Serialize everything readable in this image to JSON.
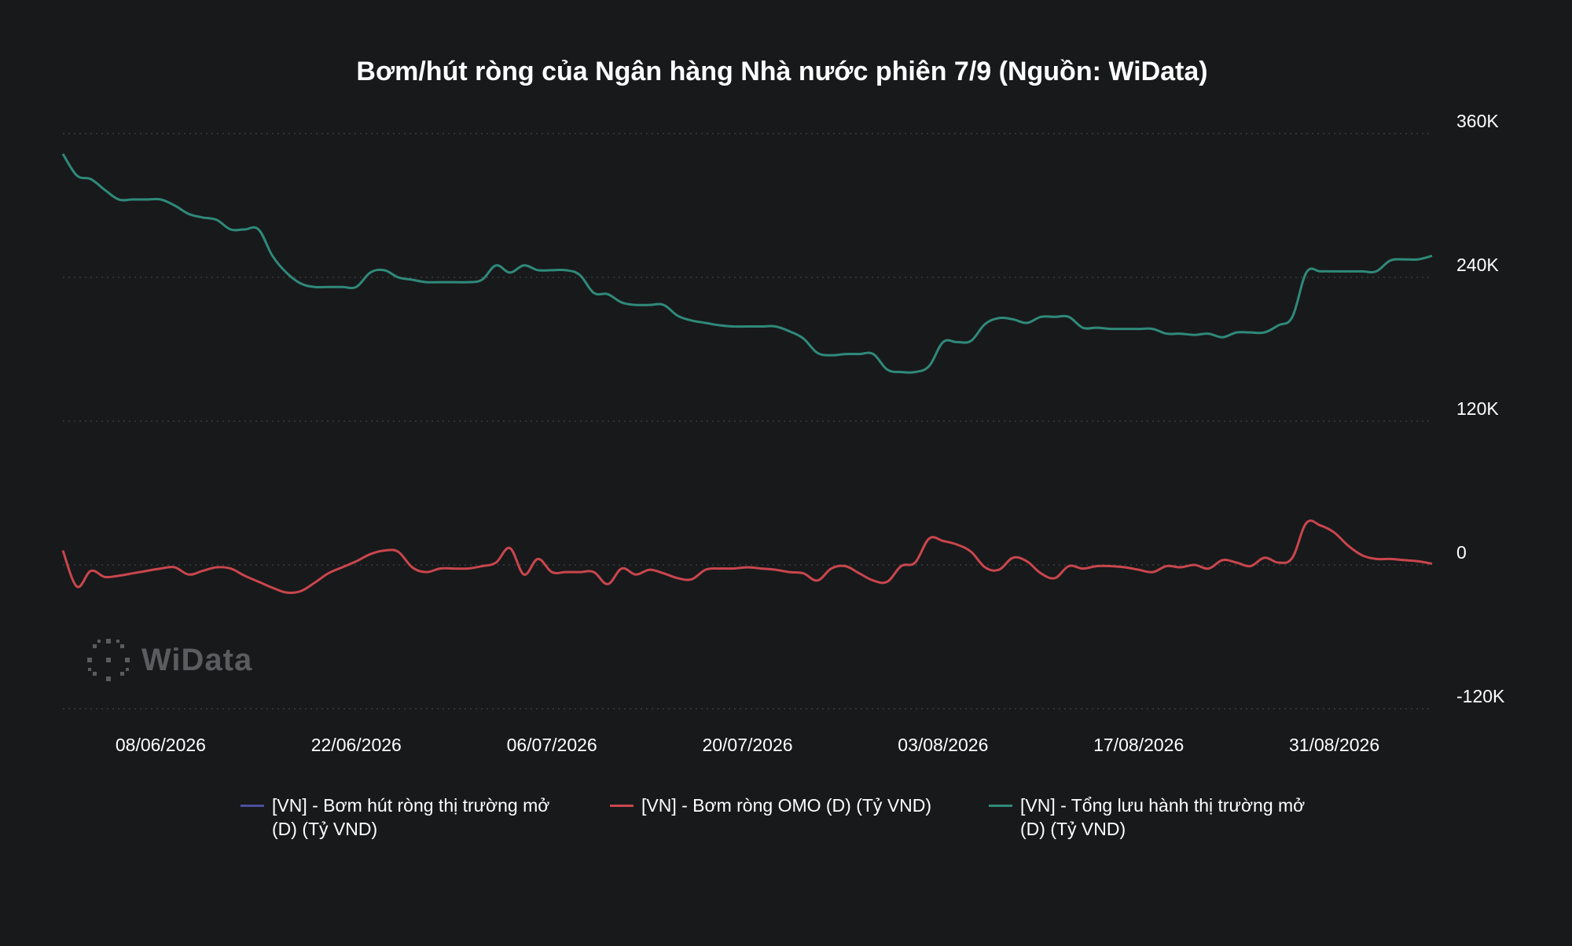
{
  "chart_data": {
    "type": "line",
    "title": "Bơm/hút ròng của Ngân hàng Nhà nước phiên 7/9 (Nguồn: WiData)",
    "xlabel": "",
    "ylabel": "",
    "x_ticks": [
      "08/06/2026",
      "22/06/2026",
      "06/07/2026",
      "20/07/2026",
      "03/08/2026",
      "17/08/2026",
      "31/08/2026"
    ],
    "y_ticks": [
      "360K",
      "240K",
      "120K",
      "0",
      "-120K"
    ],
    "ylim": [
      -120000,
      360000
    ],
    "xlim": [
      "2026-06-01",
      "2026-09-07"
    ],
    "grid": "horizontal dotted",
    "legend_position": "bottom",
    "series": [
      {
        "name": "[VN] - Bơm hút ròng thị trường mở (D) (Tỷ VND)",
        "color": "#4b4f9e",
        "points": []
      },
      {
        "name": "[VN] - Bơm ròng OMO (D) (Tỷ VND)",
        "color": "#c9464d",
        "points": [
          [
            "2026-06-01",
            12000
          ],
          [
            "2026-06-02",
            -18000
          ],
          [
            "2026-06-03",
            -5000
          ],
          [
            "2026-06-04",
            -10000
          ],
          [
            "2026-06-05",
            -9000
          ],
          [
            "2026-06-06",
            -7000
          ],
          [
            "2026-06-07",
            -5000
          ],
          [
            "2026-06-08",
            -3000
          ],
          [
            "2026-06-09",
            -2000
          ],
          [
            "2026-06-10",
            -8000
          ],
          [
            "2026-06-11",
            -5000
          ],
          [
            "2026-06-12",
            -2000
          ],
          [
            "2026-06-13",
            -3000
          ],
          [
            "2026-06-14",
            -9000
          ],
          [
            "2026-06-15",
            -14000
          ],
          [
            "2026-06-16",
            -19000
          ],
          [
            "2026-06-17",
            -23000
          ],
          [
            "2026-06-18",
            -22000
          ],
          [
            "2026-06-19",
            -15000
          ],
          [
            "2026-06-20",
            -7000
          ],
          [
            "2026-06-21",
            -2000
          ],
          [
            "2026-06-22",
            3000
          ],
          [
            "2026-06-23",
            9000
          ],
          [
            "2026-06-24",
            12000
          ],
          [
            "2026-06-25",
            11000
          ],
          [
            "2026-06-26",
            -2000
          ],
          [
            "2026-06-27",
            -6000
          ],
          [
            "2026-06-28",
            -3000
          ],
          [
            "2026-06-29",
            -3000
          ],
          [
            "2026-06-30",
            -3000
          ],
          [
            "2026-07-01",
            -1000
          ],
          [
            "2026-07-02",
            2000
          ],
          [
            "2026-07-03",
            14000
          ],
          [
            "2026-07-04",
            -8000
          ],
          [
            "2026-07-05",
            5000
          ],
          [
            "2026-07-06",
            -6000
          ],
          [
            "2026-07-07",
            -6000
          ],
          [
            "2026-07-08",
            -6000
          ],
          [
            "2026-07-09",
            -6000
          ],
          [
            "2026-07-10",
            -16000
          ],
          [
            "2026-07-11",
            -3000
          ],
          [
            "2026-07-12",
            -8000
          ],
          [
            "2026-07-13",
            -4000
          ],
          [
            "2026-07-14",
            -7000
          ],
          [
            "2026-07-15",
            -11000
          ],
          [
            "2026-07-16",
            -12000
          ],
          [
            "2026-07-17",
            -4000
          ],
          [
            "2026-07-18",
            -3000
          ],
          [
            "2026-07-19",
            -3000
          ],
          [
            "2026-07-20",
            -2000
          ],
          [
            "2026-07-21",
            -3000
          ],
          [
            "2026-07-22",
            -4000
          ],
          [
            "2026-07-23",
            -6000
          ],
          [
            "2026-07-24",
            -7000
          ],
          [
            "2026-07-25",
            -13000
          ],
          [
            "2026-07-26",
            -3000
          ],
          [
            "2026-07-27",
            -1000
          ],
          [
            "2026-07-28",
            -7000
          ],
          [
            "2026-07-29",
            -13000
          ],
          [
            "2026-07-30",
            -14000
          ],
          [
            "2026-07-31",
            -1000
          ],
          [
            "2026-08-01",
            2000
          ],
          [
            "2026-08-02",
            22000
          ],
          [
            "2026-08-03",
            20000
          ],
          [
            "2026-08-04",
            17000
          ],
          [
            "2026-08-05",
            11000
          ],
          [
            "2026-08-06",
            -2000
          ],
          [
            "2026-08-07",
            -4000
          ],
          [
            "2026-08-08",
            6000
          ],
          [
            "2026-08-09",
            3000
          ],
          [
            "2026-08-10",
            -7000
          ],
          [
            "2026-08-11",
            -11000
          ],
          [
            "2026-08-12",
            -1000
          ],
          [
            "2026-08-13",
            -3000
          ],
          [
            "2026-08-14",
            -1000
          ],
          [
            "2026-08-15",
            -1000
          ],
          [
            "2026-08-16",
            -2000
          ],
          [
            "2026-08-17",
            -4000
          ],
          [
            "2026-08-18",
            -6000
          ],
          [
            "2026-08-19",
            -1000
          ],
          [
            "2026-08-20",
            -2000
          ],
          [
            "2026-08-21",
            0
          ],
          [
            "2026-08-22",
            -3000
          ],
          [
            "2026-08-23",
            4000
          ],
          [
            "2026-08-24",
            2000
          ],
          [
            "2026-08-25",
            -1000
          ],
          [
            "2026-08-26",
            6000
          ],
          [
            "2026-08-27",
            2000
          ],
          [
            "2026-08-28",
            6000
          ],
          [
            "2026-08-29",
            35000
          ],
          [
            "2026-08-30",
            33000
          ],
          [
            "2026-08-31",
            27000
          ],
          [
            "2026-09-01",
            16000
          ],
          [
            "2026-09-02",
            8000
          ],
          [
            "2026-09-03",
            5000
          ],
          [
            "2026-09-04",
            5000
          ],
          [
            "2026-09-05",
            4000
          ],
          [
            "2026-09-06",
            3000
          ],
          [
            "2026-09-07",
            1000
          ]
        ]
      },
      {
        "name": "[VN] - Tổng lưu hành thị trường mở (D) (Tỷ VND)",
        "color": "#2f8a7a",
        "points": [
          [
            "2026-06-01",
            343000
          ],
          [
            "2026-06-02",
            325000
          ],
          [
            "2026-06-03",
            322000
          ],
          [
            "2026-06-04",
            313000
          ],
          [
            "2026-06-05",
            305000
          ],
          [
            "2026-06-06",
            305000
          ],
          [
            "2026-06-07",
            305000
          ],
          [
            "2026-06-08",
            305000
          ],
          [
            "2026-06-09",
            300000
          ],
          [
            "2026-06-10",
            293000
          ],
          [
            "2026-06-11",
            290000
          ],
          [
            "2026-06-12",
            288000
          ],
          [
            "2026-06-13",
            280000
          ],
          [
            "2026-06-14",
            280000
          ],
          [
            "2026-06-15",
            280000
          ],
          [
            "2026-06-16",
            258000
          ],
          [
            "2026-06-17",
            244000
          ],
          [
            "2026-06-18",
            235000
          ],
          [
            "2026-06-19",
            232000
          ],
          [
            "2026-06-20",
            232000
          ],
          [
            "2026-06-21",
            232000
          ],
          [
            "2026-06-22",
            232000
          ],
          [
            "2026-06-23",
            244000
          ],
          [
            "2026-06-24",
            246000
          ],
          [
            "2026-06-25",
            240000
          ],
          [
            "2026-06-26",
            238000
          ],
          [
            "2026-06-27",
            236000
          ],
          [
            "2026-06-28",
            236000
          ],
          [
            "2026-06-29",
            236000
          ],
          [
            "2026-06-30",
            236000
          ],
          [
            "2026-07-01",
            238000
          ],
          [
            "2026-07-02",
            250000
          ],
          [
            "2026-07-03",
            244000
          ],
          [
            "2026-07-04",
            250000
          ],
          [
            "2026-07-05",
            246000
          ],
          [
            "2026-07-06",
            246000
          ],
          [
            "2026-07-07",
            246000
          ],
          [
            "2026-07-08",
            242000
          ],
          [
            "2026-07-09",
            227000
          ],
          [
            "2026-07-10",
            226000
          ],
          [
            "2026-07-11",
            219000
          ],
          [
            "2026-07-12",
            217000
          ],
          [
            "2026-07-13",
            217000
          ],
          [
            "2026-07-14",
            217000
          ],
          [
            "2026-07-15",
            208000
          ],
          [
            "2026-07-16",
            204000
          ],
          [
            "2026-07-17",
            202000
          ],
          [
            "2026-07-18",
            200000
          ],
          [
            "2026-07-19",
            199000
          ],
          [
            "2026-07-20",
            199000
          ],
          [
            "2026-07-21",
            199000
          ],
          [
            "2026-07-22",
            199000
          ],
          [
            "2026-07-23",
            195000
          ],
          [
            "2026-07-24",
            189000
          ],
          [
            "2026-07-25",
            177000
          ],
          [
            "2026-07-26",
            175000
          ],
          [
            "2026-07-27",
            176000
          ],
          [
            "2026-07-28",
            176000
          ],
          [
            "2026-07-29",
            176000
          ],
          [
            "2026-07-30",
            163000
          ],
          [
            "2026-07-31",
            161000
          ],
          [
            "2026-08-01",
            161000
          ],
          [
            "2026-08-02",
            166000
          ],
          [
            "2026-08-03",
            186000
          ],
          [
            "2026-08-04",
            186000
          ],
          [
            "2026-08-05",
            187000
          ],
          [
            "2026-08-06",
            201000
          ],
          [
            "2026-08-07",
            206000
          ],
          [
            "2026-08-08",
            205000
          ],
          [
            "2026-08-09",
            202000
          ],
          [
            "2026-08-10",
            207000
          ],
          [
            "2026-08-11",
            207000
          ],
          [
            "2026-08-12",
            207000
          ],
          [
            "2026-08-13",
            198000
          ],
          [
            "2026-08-14",
            198000
          ],
          [
            "2026-08-15",
            197000
          ],
          [
            "2026-08-16",
            197000
          ],
          [
            "2026-08-17",
            197000
          ],
          [
            "2026-08-18",
            197000
          ],
          [
            "2026-08-19",
            193000
          ],
          [
            "2026-08-20",
            193000
          ],
          [
            "2026-08-21",
            192000
          ],
          [
            "2026-08-22",
            193000
          ],
          [
            "2026-08-23",
            190000
          ],
          [
            "2026-08-24",
            194000
          ],
          [
            "2026-08-25",
            194000
          ],
          [
            "2026-08-26",
            194000
          ],
          [
            "2026-08-27",
            200000
          ],
          [
            "2026-08-28",
            207000
          ],
          [
            "2026-08-29",
            244000
          ],
          [
            "2026-08-30",
            245000
          ],
          [
            "2026-08-31",
            245000
          ],
          [
            "2026-09-01",
            245000
          ],
          [
            "2026-09-02",
            245000
          ],
          [
            "2026-09-03",
            245000
          ],
          [
            "2026-09-04",
            254000
          ],
          [
            "2026-09-05",
            255000
          ],
          [
            "2026-09-06",
            255000
          ],
          [
            "2026-09-07",
            258000
          ]
        ]
      }
    ]
  },
  "watermark": {
    "text": "WiData",
    "icon": "dotted-circle-logo-icon"
  }
}
